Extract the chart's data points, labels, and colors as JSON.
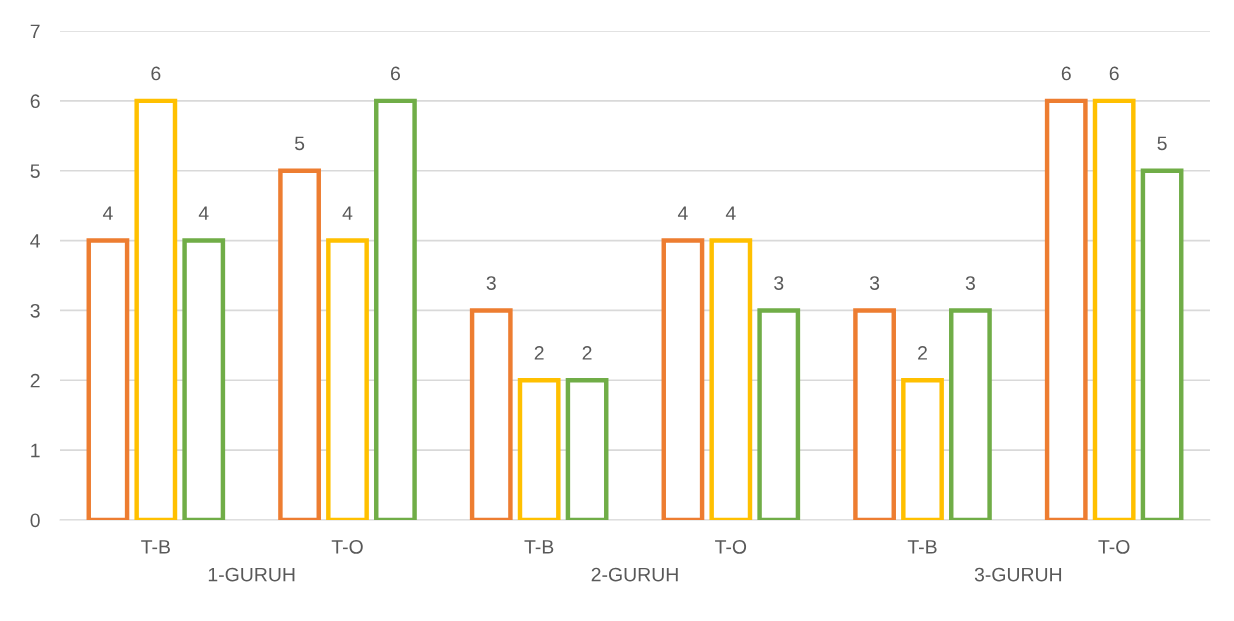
{
  "chart_data": {
    "type": "bar",
    "categories": [
      "T-B",
      "T-O",
      "T-B",
      "T-O",
      "T-B",
      "T-O"
    ],
    "annotations": [
      "1-GURUH",
      "2-GURUH",
      "3-GURUH"
    ],
    "series": [
      {
        "color": "#ed7d31",
        "values": [
          4,
          5,
          3,
          4,
          3,
          6
        ]
      },
      {
        "color": "#ffc000",
        "values": [
          6,
          4,
          2,
          4,
          2,
          6
        ]
      },
      {
        "color": "#70ad47",
        "values": [
          4,
          6,
          2,
          3,
          3,
          5
        ]
      }
    ],
    "ylim": [
      0,
      7
    ],
    "yticks": [
      0,
      1,
      2,
      3,
      4,
      5,
      6,
      7
    ],
    "grid": "y",
    "data_labels": true,
    "legend": false
  }
}
